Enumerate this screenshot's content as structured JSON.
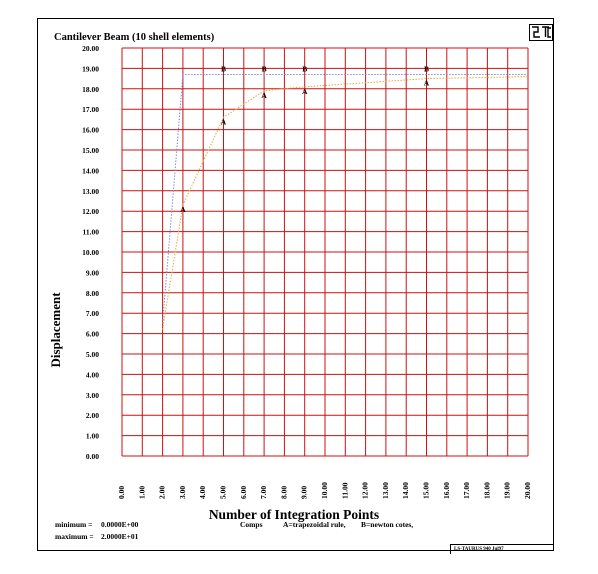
{
  "chart_data": {
    "type": "line",
    "title": "Cantilever Beam (10 shell elements)",
    "xlabel": "Number of Integration Points",
    "ylabel": "Displacement",
    "xlim": [
      0,
      20
    ],
    "ylim": [
      0,
      20
    ],
    "grid": true,
    "x_ticks": [
      "0.00",
      "1.00",
      "2.00",
      "3.00",
      "4.00",
      "5.00",
      "6.00",
      "7.00",
      "8.00",
      "9.00",
      "10.00",
      "11.00",
      "12.00",
      "13.00",
      "14.00",
      "15.00",
      "16.00",
      "17.00",
      "18.00",
      "19.00",
      "20.00"
    ],
    "y_ticks": [
      "0.00",
      "1.00",
      "2.00",
      "3.00",
      "4.00",
      "5.00",
      "6.00",
      "7.00",
      "8.00",
      "9.00",
      "10.00",
      "11.00",
      "12.00",
      "13.00",
      "14.00",
      "15.00",
      "16.00",
      "17.00",
      "18.00",
      "19.00",
      "20.00"
    ],
    "series": [
      {
        "marker": "A",
        "color": "#e8a838",
        "points": [
          [
            2.0,
            6.2
          ],
          [
            3.0,
            12.3
          ],
          [
            5.0,
            16.6
          ],
          [
            7.0,
            17.9
          ],
          [
            9.0,
            18.1
          ],
          [
            15.0,
            18.5
          ],
          [
            20.0,
            18.6
          ]
        ],
        "marker_x": [
          3,
          5,
          7,
          9,
          15
        ]
      },
      {
        "marker": "B",
        "color": "#7a8fd8",
        "points": [
          [
            2.0,
            6.5
          ],
          [
            3.0,
            18.7
          ],
          [
            5.0,
            18.7
          ],
          [
            7.0,
            18.7
          ],
          [
            9.0,
            18.7
          ],
          [
            15.0,
            18.7
          ],
          [
            20.0,
            18.7
          ]
        ],
        "marker_x": [
          5,
          7,
          9,
          15
        ]
      }
    ]
  },
  "footer": {
    "minimum_label": "minimum =",
    "minimum_value": "0.0000E+00",
    "maximum_label": "maximum =",
    "maximum_value": "2.0000E+01",
    "comps_label": "Comps",
    "legend_a": "A=trapezoidal rule,",
    "legend_b": "B=newton cotes,"
  },
  "stamp": "LS-TAURUS 940 Jul97"
}
